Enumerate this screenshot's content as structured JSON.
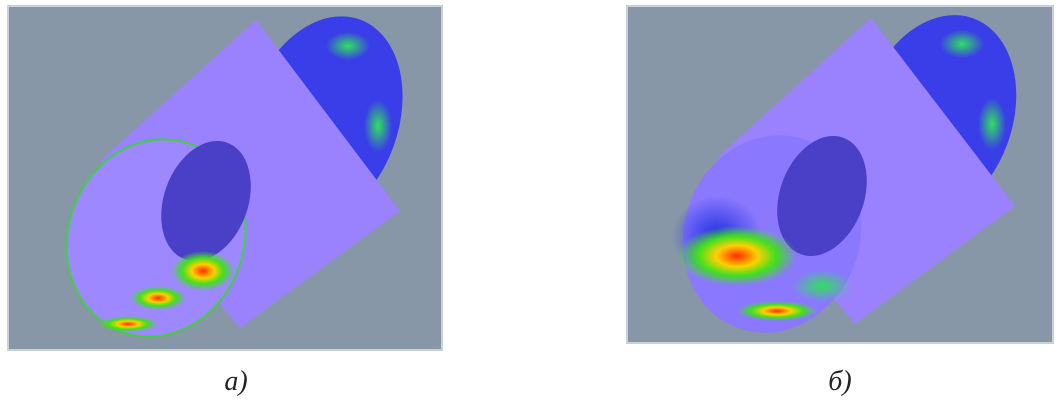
{
  "figure": {
    "panels": [
      {
        "label": "а)"
      },
      {
        "label": "б)"
      }
    ]
  }
}
